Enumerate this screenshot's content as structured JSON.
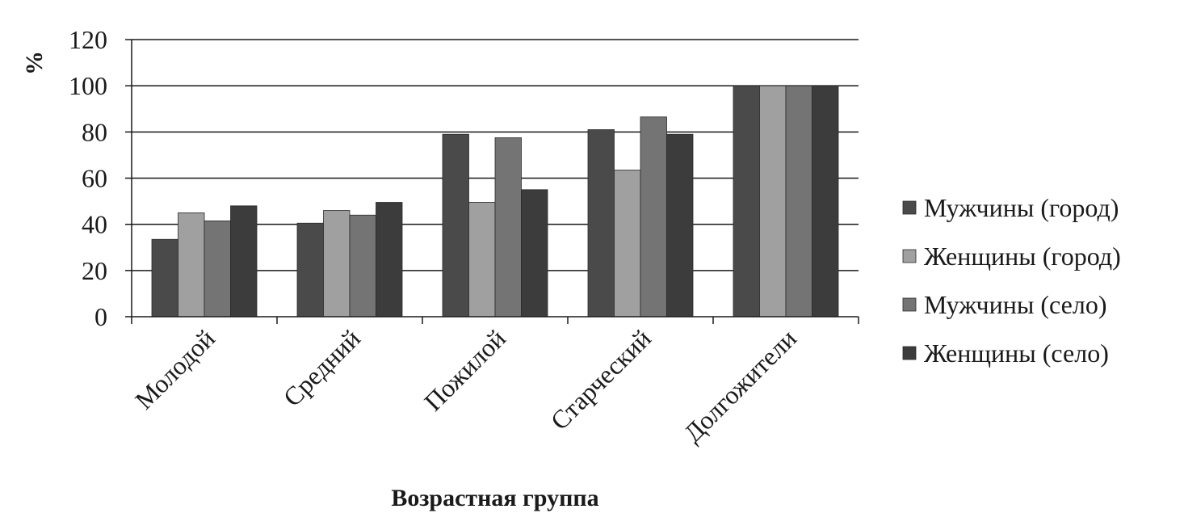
{
  "chart_data": {
    "type": "bar",
    "title": "",
    "xlabel": "Возрастная группа",
    "ylabel": "%",
    "ylim": [
      0,
      120
    ],
    "yticks": [
      0,
      20,
      40,
      60,
      80,
      100,
      120
    ],
    "grid": true,
    "legend_position": "right",
    "categories": [
      "Молодой",
      "Средний",
      "Пожилой",
      "Старческий",
      "Долгожители"
    ],
    "series": [
      {
        "name": "Мужчины (город)",
        "color": "#4a4a4a",
        "values": [
          33.5,
          40.5,
          79,
          81,
          100
        ]
      },
      {
        "name": "Женщины (город)",
        "color": "#a0a0a0",
        "values": [
          45,
          46,
          49.5,
          63.5,
          100
        ]
      },
      {
        "name": "Мужчины (село)",
        "color": "#747474",
        "values": [
          41.5,
          44,
          77.5,
          86.5,
          100
        ]
      },
      {
        "name": "Женщины (село)",
        "color": "#3c3c3c",
        "values": [
          48,
          49.5,
          55,
          79,
          100
        ]
      }
    ]
  }
}
